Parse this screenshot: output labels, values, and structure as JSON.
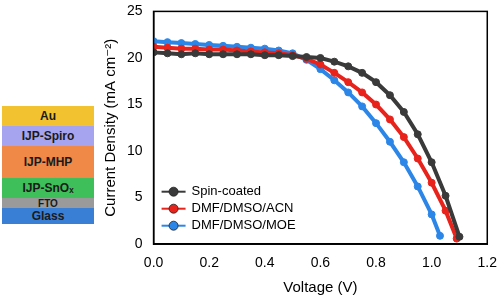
{
  "chart_data": {
    "type": "scatter",
    "x_label": "Voltage (V)",
    "y_label": "Current Density (mA cm⁻²)",
    "xlim": [
      0,
      1.2
    ],
    "xticks": [
      {
        "value": 0,
        "label": "0.0"
      },
      {
        "value": 0.2,
        "label": "0.2"
      },
      {
        "value": 0.4,
        "label": "0.4"
      },
      {
        "value": 0.6,
        "label": "0.6"
      },
      {
        "value": 0.8,
        "label": "0.8"
      },
      {
        "value": 1.0,
        "label": "1.0"
      },
      {
        "value": 1.2,
        "label": "1.2"
      }
    ],
    "ylim": [
      0,
      25
    ],
    "yticks": [
      0,
      5,
      10,
      15,
      20,
      25
    ],
    "grid": false,
    "legend": "lower left",
    "series": [
      {
        "name": "Spin-coated",
        "color": "#3a3a3a",
        "marker": "circle",
        "x": [
          0,
          0.05,
          0.1,
          0.15,
          0.2,
          0.25,
          0.3,
          0.35,
          0.4,
          0.45,
          0.5,
          0.55,
          0.6,
          0.65,
          0.7,
          0.75,
          0.8,
          0.85,
          0.9,
          0.95,
          1.0,
          1.05,
          1.1
        ],
        "values": [
          20.6,
          20.5,
          20.4,
          20.5,
          20.4,
          20.4,
          20.4,
          20.4,
          20.3,
          20.3,
          20.2,
          20.1,
          20.0,
          19.6,
          19.1,
          18.4,
          17.4,
          16.0,
          14.2,
          11.8,
          8.8,
          5.2,
          0.8
        ]
      },
      {
        "name": "DMF/DMSO/ACN",
        "color": "#e8231c",
        "marker": "circle",
        "x": [
          0,
          0.05,
          0.1,
          0.15,
          0.2,
          0.25,
          0.3,
          0.35,
          0.4,
          0.45,
          0.5,
          0.55,
          0.6,
          0.65,
          0.7,
          0.75,
          0.8,
          0.85,
          0.9,
          0.95,
          1.0,
          1.05,
          1.09
        ],
        "values": [
          21.2,
          21.1,
          21.0,
          21.0,
          20.9,
          20.9,
          20.8,
          20.7,
          20.6,
          20.5,
          20.3,
          19.9,
          19.3,
          18.4,
          17.4,
          16.3,
          15.0,
          13.4,
          11.5,
          9.2,
          6.6,
          3.6,
          0.6
        ]
      },
      {
        "name": "DMF/DMSO/MOE",
        "color": "#2b86e8",
        "marker": "circle",
        "x": [
          0,
          0.05,
          0.1,
          0.15,
          0.2,
          0.25,
          0.3,
          0.35,
          0.4,
          0.45,
          0.5,
          0.55,
          0.6,
          0.65,
          0.7,
          0.75,
          0.8,
          0.85,
          0.9,
          0.95,
          1.0,
          1.03
        ],
        "values": [
          21.8,
          21.7,
          21.6,
          21.5,
          21.4,
          21.3,
          21.2,
          21.1,
          21.0,
          20.8,
          20.5,
          19.8,
          18.8,
          17.6,
          16.3,
          14.8,
          13.0,
          11.0,
          8.8,
          6.2,
          3.2,
          0.9
        ]
      }
    ]
  },
  "diagram": {
    "layers": [
      "Au",
      "IJP-Spiro",
      "IJP-MHP",
      "IJP-SnOₓ",
      "FTO",
      "Glass"
    ]
  }
}
